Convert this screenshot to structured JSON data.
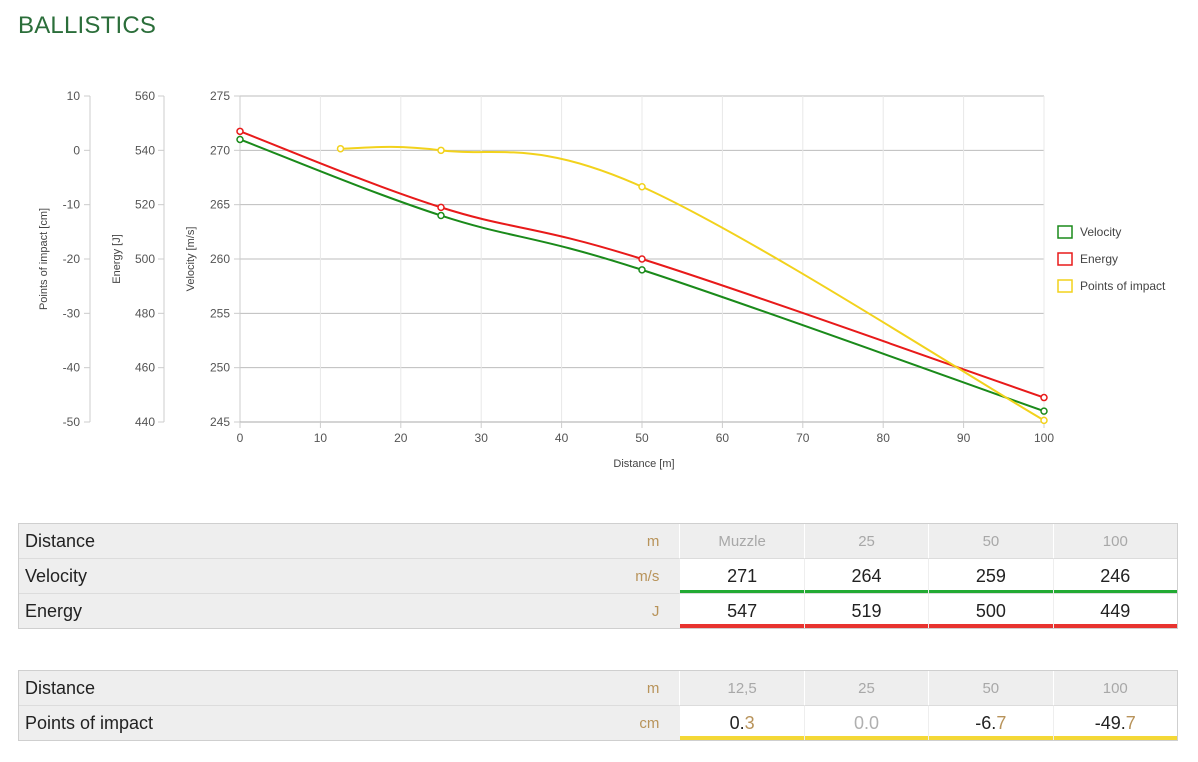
{
  "page": {
    "title": "BALLISTICS"
  },
  "chart_data": {
    "type": "line",
    "xlabel": "Distance [m]",
    "xlim": [
      0,
      100
    ],
    "xticks": [
      0,
      10,
      20,
      30,
      40,
      50,
      60,
      70,
      80,
      90,
      100
    ],
    "axes": {
      "velocity": {
        "label": "Velocity [m/s]",
        "ylim": [
          245,
          275
        ],
        "ticks": [
          245,
          250,
          255,
          260,
          265,
          270,
          275
        ]
      },
      "energy": {
        "label": "Energy [J]",
        "ylim": [
          440,
          560
        ],
        "ticks": [
          440,
          460,
          480,
          500,
          520,
          540,
          560
        ]
      },
      "poi": {
        "label": "Points of impact [cm]",
        "ylim": [
          -50,
          10
        ],
        "ticks": [
          -50,
          -40,
          -30,
          -20,
          -10,
          0,
          10
        ]
      }
    },
    "series": [
      {
        "name": "Velocity",
        "axis": "velocity",
        "color": "#1a8a1a",
        "x": [
          0,
          25,
          50,
          100
        ],
        "y": [
          271,
          264,
          259,
          246
        ]
      },
      {
        "name": "Energy",
        "axis": "energy",
        "color": "#e81a1a",
        "x": [
          0,
          25,
          50,
          100
        ],
        "y": [
          547,
          519,
          500,
          449
        ]
      },
      {
        "name": "Points of impact",
        "axis": "poi",
        "color": "#f2d21c",
        "x": [
          12.5,
          25,
          50,
          100
        ],
        "y": [
          0.3,
          0.0,
          -6.7,
          -49.7
        ]
      }
    ],
    "legend": "right",
    "grid": true
  },
  "table1": {
    "rows": [
      {
        "label": "Distance",
        "unit": "m",
        "values": [
          "Muzzle",
          "25",
          "50",
          "100"
        ]
      },
      {
        "label": "Velocity",
        "unit": "m/s",
        "values": [
          "271",
          "264",
          "259",
          "246"
        ]
      },
      {
        "label": "Energy",
        "unit": "J",
        "values": [
          "547",
          "519",
          "500",
          "449"
        ]
      }
    ]
  },
  "table2": {
    "rows": [
      {
        "label": "Distance",
        "unit": "m",
        "values": [
          "12,5",
          "25",
          "50",
          "100"
        ]
      },
      {
        "label": "Points of impact",
        "unit": "cm",
        "values": [
          {
            "int": "0.",
            "dec": "3"
          },
          {
            "int": "0.",
            "dec": "0"
          },
          {
            "int": "-6.",
            "dec": "7"
          },
          {
            "int": "-49.",
            "dec": "7"
          }
        ]
      }
    ]
  }
}
